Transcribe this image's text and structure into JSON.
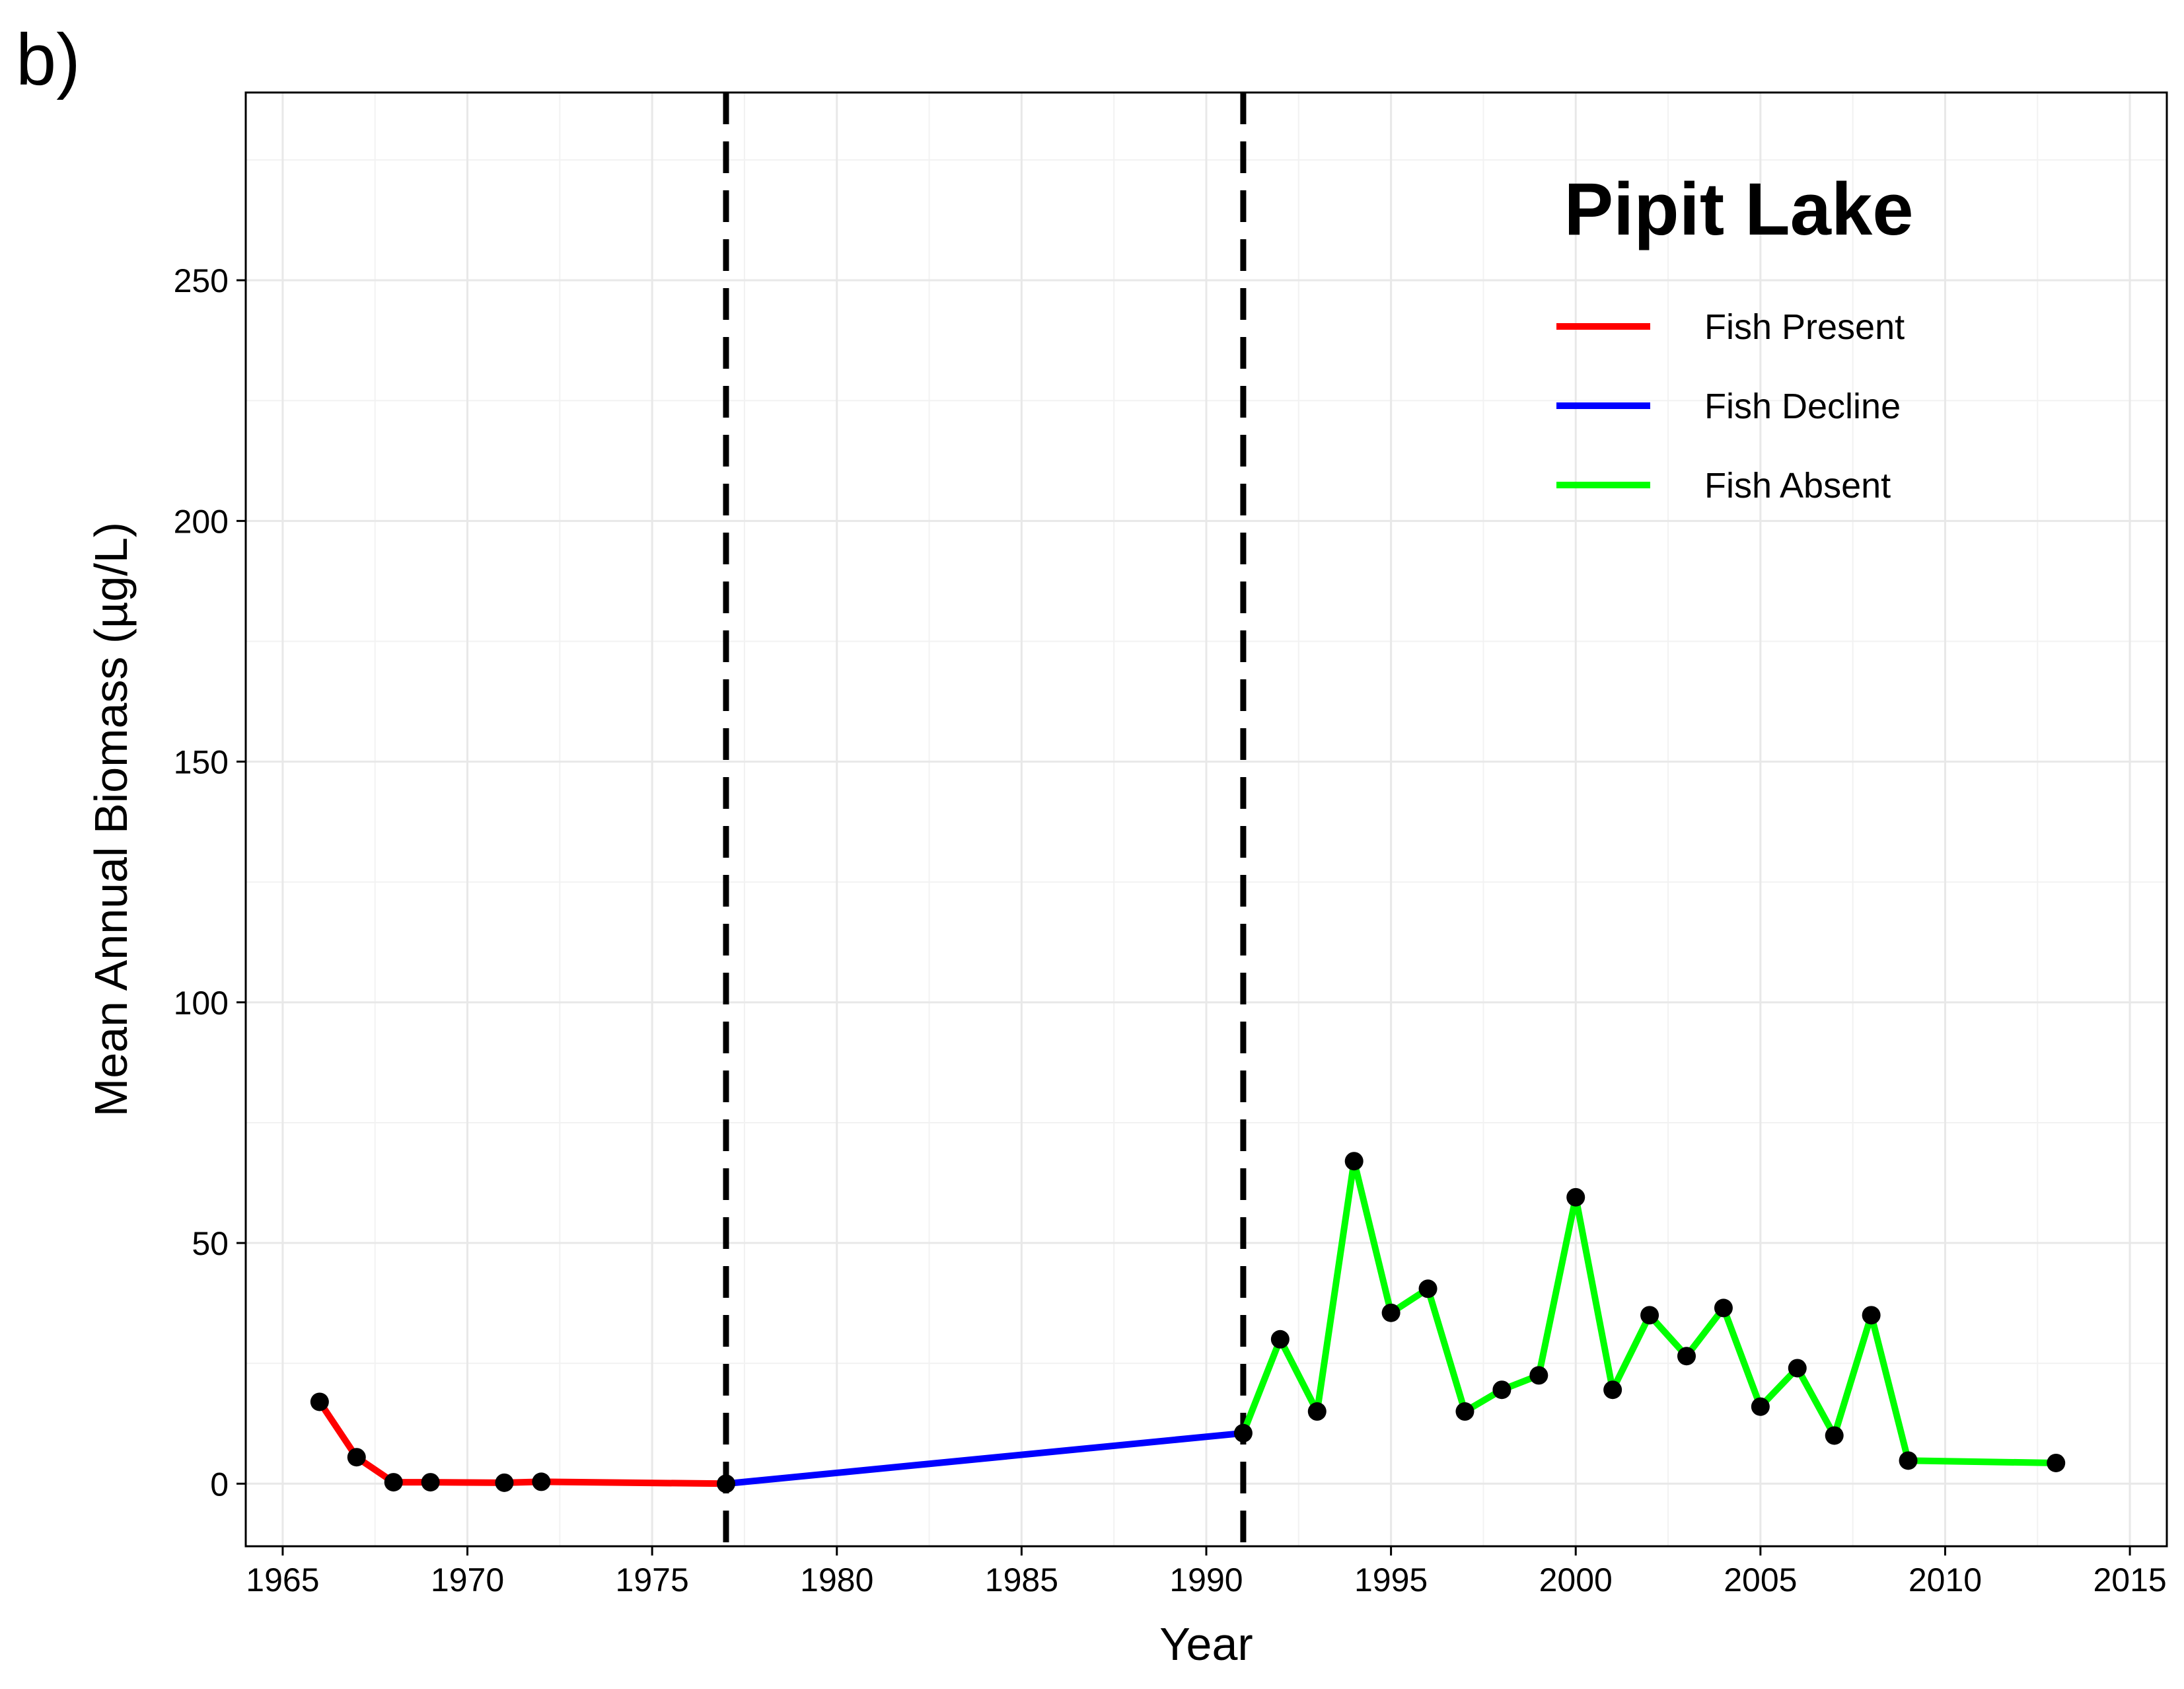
{
  "panel_label": "b)",
  "chart_data": {
    "type": "line",
    "xlabel": "Year",
    "ylabel": "Mean Annual Biomass (µg/L)",
    "xlim": [
      1964,
      2016
    ],
    "ylim": [
      -13,
      289
    ],
    "x_ticks": [
      1965,
      1970,
      1975,
      1980,
      1985,
      1990,
      1995,
      2000,
      2005,
      2010,
      2015
    ],
    "x_tick_labels": [
      "1965",
      "1970",
      "1975",
      "1980",
      "1985",
      "1990",
      "1995",
      "2000",
      "2005",
      "2010",
      "2015"
    ],
    "y_ticks": [
      0,
      50,
      100,
      150,
      200,
      250
    ],
    "y_tick_labels": [
      "0",
      "50",
      "100",
      "150",
      "200",
      "250"
    ],
    "grid": true,
    "vlines": [
      1977,
      1991
    ],
    "legend": {
      "title": "Pipit Lake",
      "position": "top-right",
      "entries": [
        {
          "label": "Fish Present",
          "color": "#ff0000"
        },
        {
          "label": "Fish Decline",
          "color": "#0000ff"
        },
        {
          "label": "Fish Absent",
          "color": "#00ff00"
        }
      ]
    },
    "point_color": "#000000",
    "series": [
      {
        "name": "Fish Present",
        "color": "#ff0000",
        "x": [
          1966,
          1967,
          1968,
          1969,
          1971,
          1972,
          1977
        ],
        "y": [
          17,
          5.5,
          0.3,
          0.3,
          0.2,
          0.4,
          0
        ]
      },
      {
        "name": "Fish Decline",
        "color": "#0000ff",
        "x": [
          1977,
          1991
        ],
        "y": [
          0,
          10.5
        ]
      },
      {
        "name": "Fish Absent",
        "color": "#00ff00",
        "x": [
          1991,
          1992,
          1993,
          1994,
          1995,
          1996,
          1997,
          1998,
          1999,
          2000,
          2001,
          2002,
          2003,
          2004,
          2005,
          2006,
          2007,
          2008,
          2009,
          2013
        ],
        "y": [
          10.5,
          30,
          15,
          67,
          35.5,
          40.5,
          15,
          19.5,
          22.5,
          59.5,
          19.5,
          35,
          26.5,
          36.5,
          16,
          24,
          10,
          35,
          4.8,
          4.3
        ]
      }
    ]
  }
}
